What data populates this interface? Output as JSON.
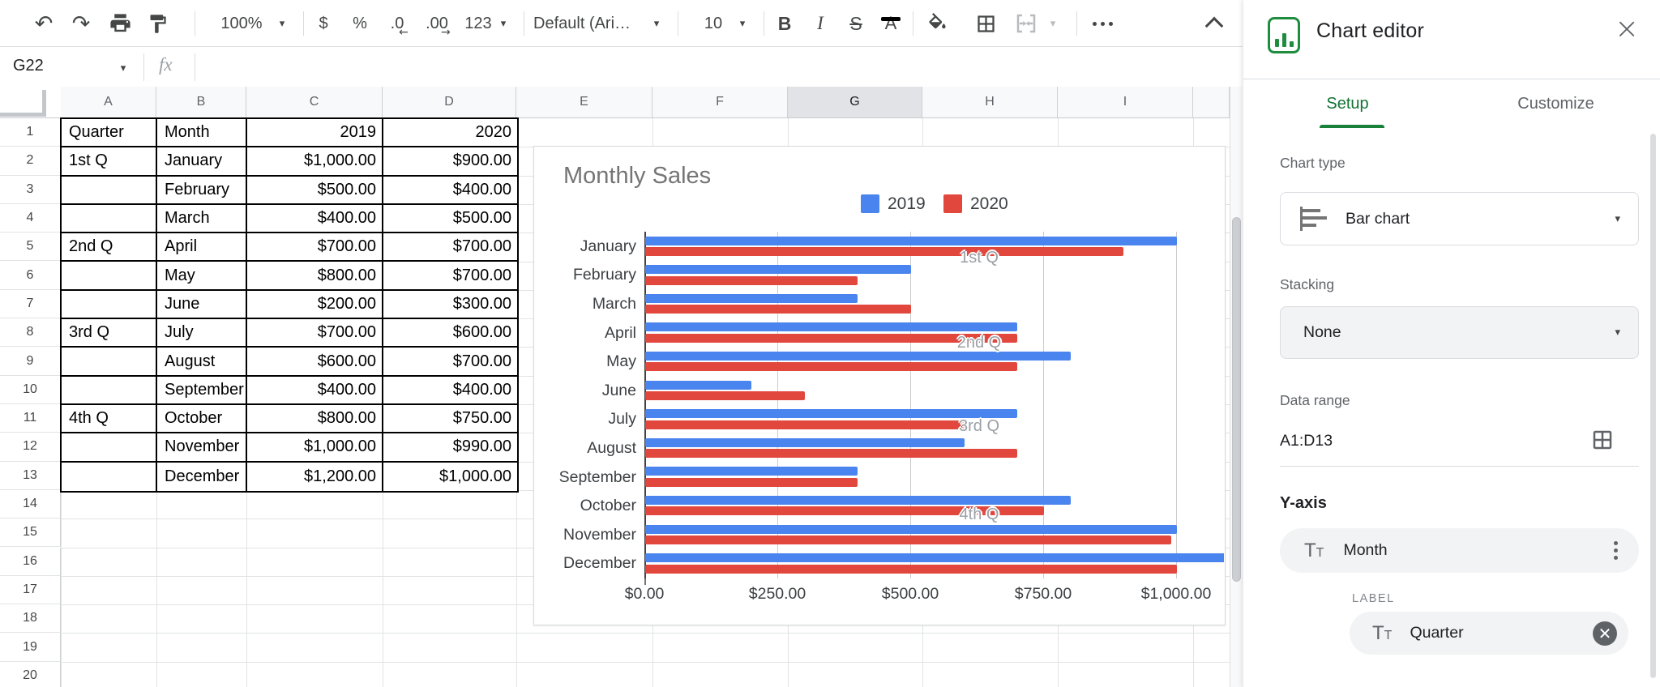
{
  "toolbar": {
    "zoom_value": "100%",
    "currency_label": "$",
    "percent_label": "%",
    "decrease_decimal_label": ".0",
    "increase_decimal_label": ".00",
    "number_format_label": "123",
    "font_value": "Default (Ari…",
    "font_size_value": "10",
    "bold_label": "B",
    "italic_label": "I",
    "strikethrough_label": "S",
    "text_color_label": "A",
    "undo_glyph": "↶",
    "redo_glyph": "↷",
    "caret_glyph": "▾"
  },
  "formula_bar": {
    "cell_reference": "G22",
    "function_label": "fx"
  },
  "sheet": {
    "column_headers": [
      "A",
      "B",
      "C",
      "D",
      "E",
      "F",
      "G",
      "H",
      "I",
      ""
    ],
    "selected_column": "G",
    "row_count": 20,
    "table": {
      "headers": [
        "Quarter",
        "Month",
        "2019",
        "2020"
      ],
      "rows": [
        [
          "1st Q",
          "January",
          "$1,000.00",
          "$900.00"
        ],
        [
          "",
          "February",
          "$500.00",
          "$400.00"
        ],
        [
          "",
          "March",
          "$400.00",
          "$500.00"
        ],
        [
          "2nd Q",
          "April",
          "$700.00",
          "$700.00"
        ],
        [
          "",
          "May",
          "$800.00",
          "$700.00"
        ],
        [
          "",
          "June",
          "$200.00",
          "$300.00"
        ],
        [
          "3rd Q",
          "July",
          "$700.00",
          "$600.00"
        ],
        [
          "",
          "August",
          "$600.00",
          "$700.00"
        ],
        [
          "",
          "September",
          "$400.00",
          "$400.00"
        ],
        [
          "4th Q",
          "October",
          "$800.00",
          "$750.00"
        ],
        [
          "",
          "November",
          "$1,000.00",
          "$990.00"
        ],
        [
          "",
          "December",
          "$1,200.00",
          "$1,000.00"
        ]
      ]
    }
  },
  "chart_data": {
    "type": "bar",
    "orientation": "horizontal",
    "title": "Monthly Sales",
    "categories": [
      "January",
      "February",
      "March",
      "April",
      "May",
      "June",
      "July",
      "August",
      "September",
      "October",
      "November",
      "December"
    ],
    "series": [
      {
        "name": "2019",
        "color": "#4a84ee",
        "values": [
          1000,
          500,
          400,
          700,
          800,
          200,
          700,
          600,
          400,
          800,
          1000,
          1200
        ]
      },
      {
        "name": "2020",
        "color": "#e2473d",
        "values": [
          900,
          400,
          500,
          700,
          700,
          300,
          600,
          700,
          400,
          750,
          990,
          1000
        ]
      }
    ],
    "x_ticks": [
      "$0.00",
      "$250.00",
      "$500.00",
      "$750.00",
      "$1,000.00"
    ],
    "x_tick_values": [
      0,
      250,
      500,
      750,
      1000
    ],
    "xlim": [
      0,
      1000
    ],
    "grid": true,
    "legend_position": "top",
    "quarter_labels": [
      "1st Q",
      "2nd Q",
      "3rd Q",
      "4th Q"
    ]
  },
  "chart_editor": {
    "title": "Chart editor",
    "tabs": {
      "setup": "Setup",
      "customize": "Customize"
    },
    "chart_type_label": "Chart type",
    "chart_type_value": "Bar chart",
    "stacking_label": "Stacking",
    "stacking_value": "None",
    "data_range_label": "Data range",
    "data_range_value": "A1:D13",
    "y_axis_heading": "Y-axis",
    "y_axis_value": "Month",
    "label_heading": "LABEL",
    "label_value": "Quarter"
  }
}
